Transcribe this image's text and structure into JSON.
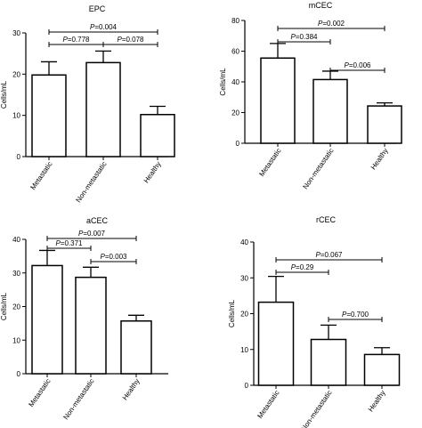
{
  "figure": {
    "panels": [
      "EPC",
      "mCEC",
      "aCEC",
      "rCEC"
    ]
  },
  "chart_data": [
    {
      "type": "bar",
      "title": "EPC",
      "ylabel": "Cells/mL",
      "categories": [
        "Metastatic",
        "Non-metastatic",
        "Healthy"
      ],
      "values": [
        19.8,
        22.8,
        10.2
      ],
      "errors": [
        3.2,
        2.8,
        2.0
      ],
      "ylim": [
        0,
        30
      ],
      "yticks": [
        "0",
        "10",
        "20",
        "30"
      ],
      "annotations": [
        {
          "text": "P=0.004",
          "from": "Metastatic",
          "to": "Healthy"
        },
        {
          "text": "P=0.778",
          "from": "Metastatic",
          "to": "Non-metastatic"
        },
        {
          "text": "P=0.078",
          "from": "Non-metastatic",
          "to": "Healthy"
        }
      ]
    },
    {
      "type": "bar",
      "title": "mCEC",
      "ylabel": "Cells/mL",
      "categories": [
        "Metastatic",
        "Non-metastatic",
        "Healthy"
      ],
      "values": [
        55.5,
        41.5,
        24.3
      ],
      "errors": [
        9.5,
        5.5,
        2.0
      ],
      "ylim": [
        0,
        80
      ],
      "yticks": [
        "0",
        "20",
        "40",
        "60",
        "80"
      ],
      "annotations": [
        {
          "text": "P=0.002",
          "from": "Metastatic",
          "to": "Healthy"
        },
        {
          "text": "P=0.384",
          "from": "Metastatic",
          "to": "Non-metastatic"
        },
        {
          "text": "P=0.006",
          "from": "Non-metastatic",
          "to": "Healthy"
        }
      ]
    },
    {
      "type": "bar",
      "title": "aCEC",
      "ylabel": "Cells/mL",
      "categories": [
        "Metastatic",
        "Non-metastatic",
        "Healthy"
      ],
      "values": [
        32.2,
        28.7,
        15.7
      ],
      "errors": [
        4.5,
        3.0,
        1.7
      ],
      "ylim": [
        0,
        40
      ],
      "yticks": [
        "0",
        "10",
        "20",
        "30",
        "40"
      ],
      "annotations": [
        {
          "text": "P=0.007",
          "from": "Metastatic",
          "to": "Healthy"
        },
        {
          "text": "P=0.371",
          "from": "Metastatic",
          "to": "Non-metastatic"
        },
        {
          "text": "P=0.003",
          "from": "Non-metastatic",
          "to": "Healthy"
        }
      ]
    },
    {
      "type": "bar",
      "title": "rCEC",
      "ylabel": "Cells/mL",
      "categories": [
        "Metastatic",
        "Non-metastatic",
        "Healthy"
      ],
      "values": [
        23.2,
        12.8,
        8.6
      ],
      "errors": [
        7.2,
        4.0,
        1.9
      ],
      "ylim": [
        0,
        40
      ],
      "yticks": [
        "0",
        "10",
        "20",
        "30",
        "40"
      ],
      "annotations": [
        {
          "text": "P=0.067",
          "from": "Metastatic",
          "to": "Healthy"
        },
        {
          "text": "P=0.29",
          "from": "Metastatic",
          "to": "Non-metastatic"
        },
        {
          "text": "P=0.700",
          "from": "Non-metastatic",
          "to": "Healthy"
        }
      ]
    }
  ]
}
